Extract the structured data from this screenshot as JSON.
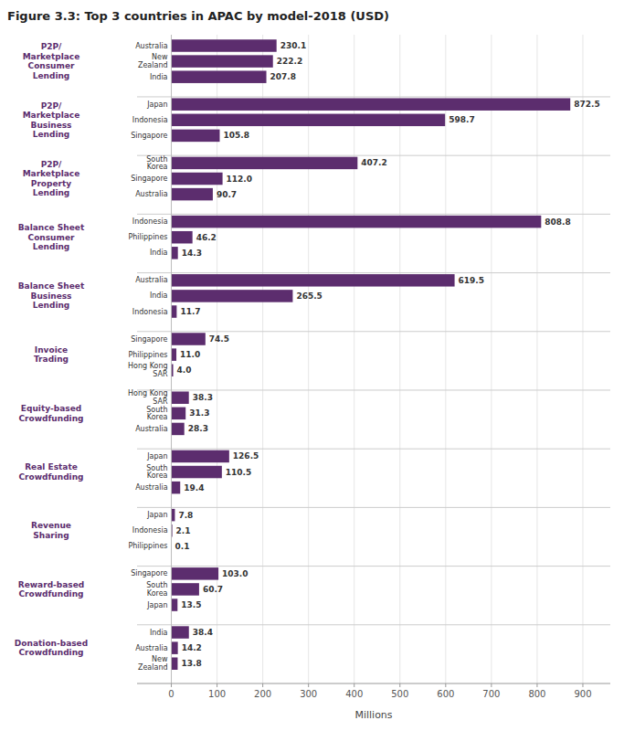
{
  "chart_data": {
    "type": "bar",
    "orientation": "horizontal",
    "title": "Figure 3.3: Top 3 countries in APAC by model-2018 (USD)",
    "xlabel": "Millions",
    "color": "#5c2d6e",
    "xlim": [
      -75,
      960
    ],
    "xticks": [
      0,
      100,
      200,
      300,
      400,
      500,
      600,
      700,
      800,
      900
    ],
    "grid": true,
    "data_labels": true,
    "groups": [
      {
        "label": "P2P/\nMarketplace\nConsumer\nLending",
        "categories": [
          "Australia",
          "New\nZealand",
          "India"
        ],
        "values": [
          230.1,
          222.2,
          207.8
        ],
        "value_labels": [
          "230.1",
          "222.2",
          "207.8"
        ]
      },
      {
        "label": "P2P/\nMarketplace\nBusiness\nLending",
        "categories": [
          "Japan",
          "Indonesia",
          "Singapore"
        ],
        "values": [
          872.5,
          598.7,
          105.8
        ],
        "value_labels": [
          "872.5",
          "598.7",
          "105.8"
        ]
      },
      {
        "label": "P2P/\nMarketplace\nProperty\nLending",
        "categories": [
          "South\nKorea",
          "Singapore",
          "Australia"
        ],
        "values": [
          407.2,
          112.0,
          90.7
        ],
        "value_labels": [
          "407.2",
          "112.0",
          "90.7"
        ]
      },
      {
        "label": "Balance Sheet\nConsumer\nLending",
        "categories": [
          "Indonesia",
          "Philippines",
          "India"
        ],
        "values": [
          808.8,
          46.2,
          14.3
        ],
        "value_labels": [
          "808.8",
          "46.2",
          "14.3"
        ]
      },
      {
        "label": "Balance Sheet\nBusiness\nLending",
        "categories": [
          "Australia",
          "India",
          "Indonesia"
        ],
        "values": [
          619.5,
          265.5,
          11.7
        ],
        "value_labels": [
          "619.5",
          "265.5",
          "11.7"
        ]
      },
      {
        "label": "Invoice\nTrading",
        "categories": [
          "Singapore",
          "Philippines",
          "Hong Kong\nSAR"
        ],
        "values": [
          74.5,
          11.0,
          4.0
        ],
        "value_labels": [
          "74.5",
          "11.0",
          "4.0"
        ]
      },
      {
        "label": "Equity-based\nCrowdfunding",
        "categories": [
          "Hong Kong\nSAR",
          "South\nKorea",
          "Australia"
        ],
        "values": [
          38.3,
          31.3,
          28.3
        ],
        "value_labels": [
          "38.3",
          "31.3",
          "28.3"
        ]
      },
      {
        "label": "Real Estate\nCrowdfunding",
        "categories": [
          "Japan",
          "South\nKorea",
          "Australia"
        ],
        "values": [
          126.5,
          110.5,
          19.4
        ],
        "value_labels": [
          "126.5",
          "110.5",
          "19.4"
        ]
      },
      {
        "label": "Revenue\nSharing",
        "categories": [
          "Japan",
          "Indonesia",
          "Philippines"
        ],
        "values": [
          7.8,
          2.1,
          0.1
        ],
        "value_labels": [
          "7.8",
          "2.1",
          "0.1"
        ]
      },
      {
        "label": "Reward-based\nCrowdfunding",
        "categories": [
          "Singapore",
          "South\nKorea",
          "Japan"
        ],
        "values": [
          103.0,
          60.7,
          13.5
        ],
        "value_labels": [
          "103.0",
          "60.7",
          "13.5"
        ]
      },
      {
        "label": "Donation-based\nCrowdfunding",
        "categories": [
          "India",
          "Australia",
          "New\nZealand"
        ],
        "values": [
          38.4,
          14.2,
          13.8
        ],
        "value_labels": [
          "38.4",
          "14.2",
          "13.8"
        ]
      }
    ]
  }
}
